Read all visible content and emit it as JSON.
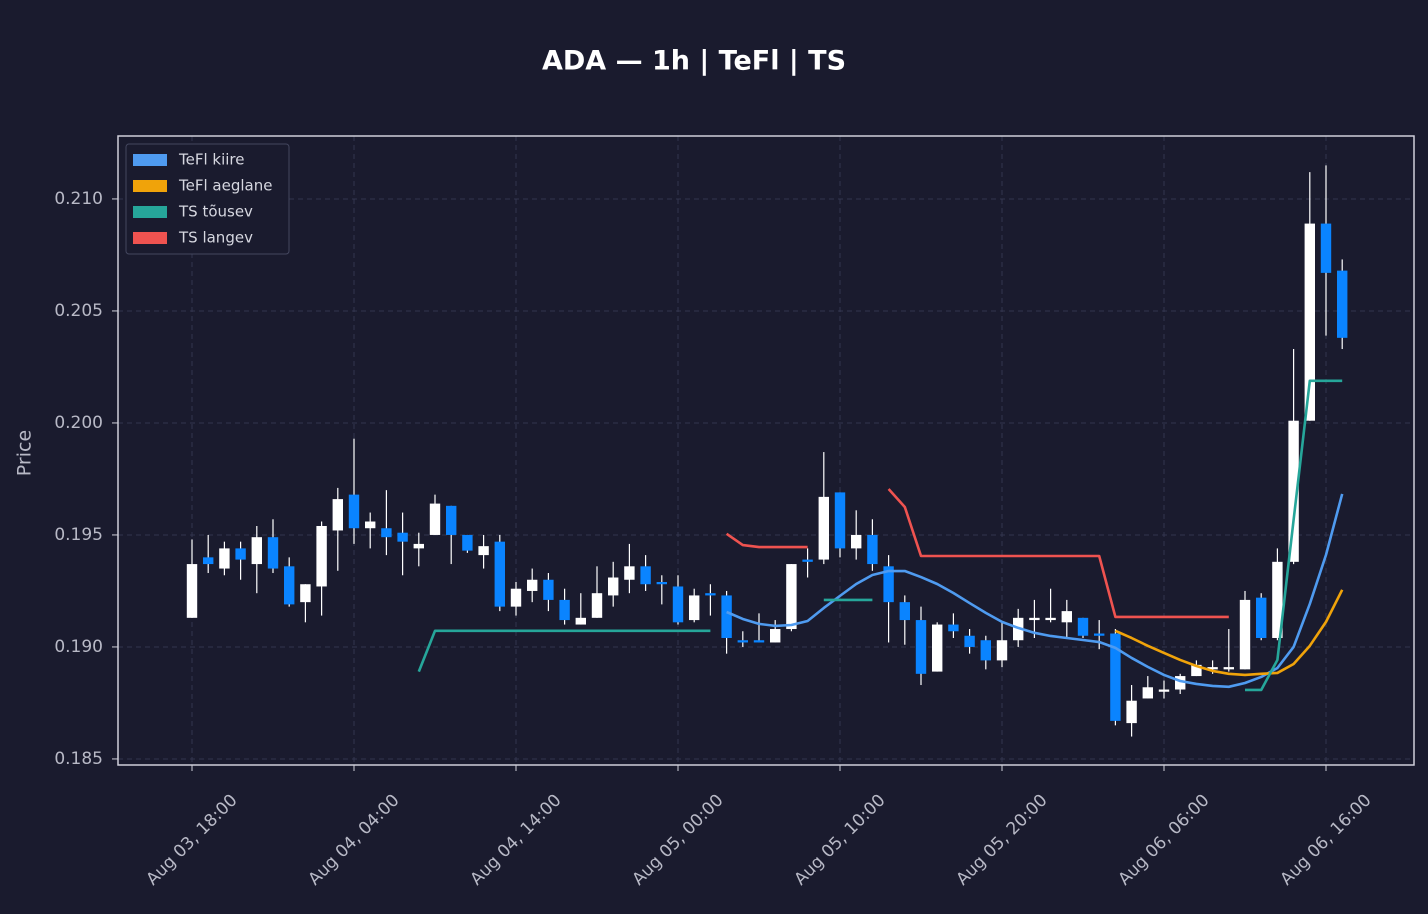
{
  "chart_data": {
    "type": "candlestick",
    "title": "ADA — 1h  |  TeFl  |  TS",
    "ylabel": "Price",
    "x": [
      "Aug 03, 18:00",
      "Aug 03, 19:00",
      "Aug 03, 20:00",
      "Aug 03, 21:00",
      "Aug 03, 22:00",
      "Aug 03, 23:00",
      "Aug 04, 00:00",
      "Aug 04, 01:00",
      "Aug 04, 02:00",
      "Aug 04, 03:00",
      "Aug 04, 04:00",
      "Aug 04, 05:00",
      "Aug 04, 06:00",
      "Aug 04, 07:00",
      "Aug 04, 08:00",
      "Aug 04, 09:00",
      "Aug 04, 10:00",
      "Aug 04, 11:00",
      "Aug 04, 12:00",
      "Aug 04, 13:00",
      "Aug 04, 14:00",
      "Aug 04, 15:00",
      "Aug 04, 16:00",
      "Aug 04, 17:00",
      "Aug 04, 18:00",
      "Aug 04, 19:00",
      "Aug 04, 20:00",
      "Aug 04, 21:00",
      "Aug 04, 22:00",
      "Aug 04, 23:00",
      "Aug 05, 00:00",
      "Aug 05, 01:00",
      "Aug 05, 02:00",
      "Aug 05, 03:00",
      "Aug 05, 04:00",
      "Aug 05, 05:00",
      "Aug 05, 06:00",
      "Aug 05, 07:00",
      "Aug 05, 08:00",
      "Aug 05, 09:00",
      "Aug 05, 10:00",
      "Aug 05, 11:00",
      "Aug 05, 12:00",
      "Aug 05, 13:00",
      "Aug 05, 14:00",
      "Aug 05, 15:00",
      "Aug 05, 16:00",
      "Aug 05, 17:00",
      "Aug 05, 18:00",
      "Aug 05, 19:00",
      "Aug 05, 20:00",
      "Aug 05, 21:00",
      "Aug 05, 22:00",
      "Aug 05, 23:00",
      "Aug 06, 00:00",
      "Aug 06, 01:00",
      "Aug 06, 02:00",
      "Aug 06, 03:00",
      "Aug 06, 04:00",
      "Aug 06, 05:00",
      "Aug 06, 06:00",
      "Aug 06, 07:00",
      "Aug 06, 08:00",
      "Aug 06, 09:00",
      "Aug 06, 10:00",
      "Aug 06, 11:00",
      "Aug 06, 12:00",
      "Aug 06, 13:00",
      "Aug 06, 14:00",
      "Aug 06, 15:00",
      "Aug 06, 16:00",
      "Aug 06, 17:00"
    ],
    "open": [
      0.1913,
      0.194,
      0.1935,
      0.1944,
      0.1937,
      0.1949,
      0.1936,
      0.192,
      0.1927,
      0.1952,
      0.1968,
      0.1953,
      0.1953,
      0.1951,
      0.1944,
      0.195,
      0.1963,
      0.195,
      0.1941,
      0.1947,
      0.1918,
      0.1925,
      0.193,
      0.1921,
      0.191,
      0.1913,
      0.1923,
      0.193,
      0.1936,
      0.1929,
      0.1927,
      0.1912,
      0.1924,
      0.1923,
      0.1903,
      0.1903,
      0.1902,
      0.1908,
      0.1939,
      0.1939,
      0.1969,
      0.1944,
      0.195,
      0.1936,
      0.192,
      0.1912,
      0.1889,
      0.191,
      0.1905,
      0.1903,
      0.1894,
      0.1903,
      0.1912,
      0.1912,
      0.1911,
      0.1913,
      0.1906,
      0.1906,
      0.1866,
      0.1877,
      0.188,
      0.1881,
      0.1887,
      0.189,
      0.189,
      0.189,
      0.1922,
      0.1904,
      0.1938,
      0.2001,
      0.2089,
      0.2068
    ],
    "high": [
      0.1948,
      0.195,
      0.1947,
      0.1947,
      0.1954,
      0.1957,
      0.194,
      0.1928,
      0.1956,
      0.1971,
      0.1993,
      0.196,
      0.197,
      0.196,
      0.1951,
      0.1968,
      0.1963,
      0.195,
      0.195,
      0.195,
      0.1929,
      0.1935,
      0.1933,
      0.1926,
      0.1924,
      0.1936,
      0.1938,
      0.1946,
      0.1941,
      0.1932,
      0.1932,
      0.1926,
      0.1928,
      0.1925,
      0.1907,
      0.1915,
      0.1912,
      0.1937,
      0.1944,
      0.1987,
      0.1969,
      0.1961,
      0.1957,
      0.1941,
      0.1923,
      0.1918,
      0.1911,
      0.1915,
      0.1908,
      0.1905,
      0.1911,
      0.1917,
      0.1921,
      0.1926,
      0.1921,
      0.1913,
      0.1912,
      0.1908,
      0.1883,
      0.1887,
      0.1885,
      0.1888,
      0.1894,
      0.1894,
      0.1908,
      0.1925,
      0.1924,
      0.1944,
      0.2033,
      0.2112,
      0.2115,
      0.2073
    ],
    "low": [
      0.1913,
      0.1933,
      0.1932,
      0.193,
      0.1924,
      0.1933,
      0.1918,
      0.1911,
      0.1914,
      0.1934,
      0.1946,
      0.1944,
      0.1941,
      0.1932,
      0.1936,
      0.195,
      0.1937,
      0.1942,
      0.1935,
      0.1916,
      0.1914,
      0.192,
      0.1916,
      0.191,
      0.191,
      0.1913,
      0.1918,
      0.1924,
      0.1925,
      0.1919,
      0.191,
      0.1911,
      0.1914,
      0.1897,
      0.19,
      0.1902,
      0.1902,
      0.1907,
      0.1931,
      0.1937,
      0.194,
      0.1939,
      0.1934,
      0.1902,
      0.1901,
      0.1883,
      0.1889,
      0.1904,
      0.1897,
      0.189,
      0.1891,
      0.19,
      0.1904,
      0.1911,
      0.1904,
      0.1904,
      0.1899,
      0.1865,
      0.186,
      0.1877,
      0.1877,
      0.1879,
      0.1887,
      0.1888,
      0.1889,
      0.189,
      0.1903,
      0.1903,
      0.1937,
      0.2001,
      0.2039,
      0.2033
    ],
    "close": [
      0.1937,
      0.1937,
      0.1944,
      0.1939,
      0.1949,
      0.1935,
      0.1919,
      0.1928,
      0.1954,
      0.1966,
      0.1953,
      0.1956,
      0.1949,
      0.1947,
      0.1946,
      0.1964,
      0.195,
      0.1943,
      0.1945,
      0.1918,
      0.1926,
      0.193,
      0.1921,
      0.1912,
      0.1913,
      0.1924,
      0.1931,
      0.1936,
      0.1928,
      0.1928,
      0.1911,
      0.1923,
      0.1923,
      0.1904,
      0.1902,
      0.1902,
      0.1908,
      0.1937,
      0.1938,
      0.1967,
      0.1944,
      0.195,
      0.1937,
      0.192,
      0.1912,
      0.1888,
      0.191,
      0.1907,
      0.19,
      0.1894,
      0.1903,
      0.1913,
      0.1913,
      0.1913,
      0.1916,
      0.1905,
      0.1905,
      0.1867,
      0.1876,
      0.1882,
      0.1881,
      0.1887,
      0.1892,
      0.1891,
      0.1891,
      0.1921,
      0.1904,
      0.1938,
      0.2001,
      0.2089,
      0.2067,
      0.2038
    ],
    "up_color": "#ffffff",
    "down_color": "#0a84ff",
    "wick_color": "#ffffff",
    "series": [
      {
        "name": "TeFl kiire",
        "color": "#4f9bf0",
        "values": [
          null,
          null,
          null,
          null,
          null,
          null,
          null,
          null,
          null,
          null,
          null,
          null,
          null,
          null,
          null,
          null,
          null,
          null,
          null,
          null,
          null,
          null,
          null,
          null,
          null,
          null,
          null,
          null,
          null,
          null,
          null,
          null,
          null,
          0.19156,
          0.19125,
          0.19103,
          0.19094,
          0.19098,
          0.19116,
          0.19174,
          0.19228,
          0.19281,
          0.19321,
          0.19339,
          0.19339,
          0.19312,
          0.19281,
          0.19241,
          0.19196,
          0.19152,
          0.19112,
          0.19085,
          0.19063,
          0.19049,
          0.1904,
          0.19031,
          0.19022,
          0.18996,
          0.18951,
          0.18911,
          0.18875,
          0.18848,
          0.18835,
          0.18826,
          0.18822,
          0.18839,
          0.18866,
          0.18906,
          0.19,
          0.19192,
          0.19411,
          0.19683
        ]
      },
      {
        "name": "TeFl aeglane",
        "color": "#f0a30a",
        "values": [
          null,
          null,
          null,
          null,
          null,
          null,
          null,
          null,
          null,
          null,
          null,
          null,
          null,
          null,
          null,
          null,
          null,
          null,
          null,
          null,
          null,
          null,
          null,
          null,
          null,
          null,
          null,
          null,
          null,
          null,
          null,
          null,
          null,
          null,
          null,
          null,
          null,
          null,
          null,
          null,
          null,
          null,
          null,
          null,
          null,
          null,
          null,
          null,
          null,
          null,
          null,
          null,
          null,
          null,
          null,
          null,
          null,
          0.19072,
          0.1904,
          0.19005,
          0.18973,
          0.18942,
          0.18915,
          0.18893,
          0.1888,
          0.18875,
          0.1888,
          0.18884,
          0.18924,
          0.19005,
          0.19112,
          0.19255
        ]
      },
      {
        "name": "TS tõusev",
        "color": "#26a69a",
        "values": [
          null,
          null,
          null,
          null,
          null,
          null,
          null,
          null,
          null,
          null,
          null,
          null,
          null,
          null,
          0.1889,
          0.19072,
          0.19072,
          0.19072,
          0.19072,
          0.19072,
          0.19072,
          0.19072,
          0.19072,
          0.19072,
          0.19072,
          0.19072,
          0.19072,
          0.19072,
          0.19072,
          0.19072,
          0.19072,
          0.19072,
          0.19072,
          null,
          null,
          null,
          null,
          null,
          null,
          0.1921,
          0.1921,
          0.1921,
          0.1921,
          null,
          null,
          null,
          null,
          null,
          null,
          null,
          null,
          null,
          null,
          null,
          null,
          null,
          null,
          null,
          null,
          null,
          null,
          null,
          null,
          null,
          null,
          0.18808,
          0.18808,
          0.18942,
          0.19567,
          0.20188,
          0.20188,
          0.20188
        ]
      },
      {
        "name": "TS langev",
        "color": "#ef5350",
        "values": [
          null,
          null,
          null,
          null,
          null,
          null,
          null,
          null,
          null,
          null,
          null,
          null,
          null,
          null,
          null,
          null,
          null,
          null,
          null,
          null,
          null,
          null,
          null,
          null,
          null,
          null,
          null,
          null,
          null,
          null,
          null,
          null,
          null,
          0.19505,
          0.19455,
          0.19446,
          0.19446,
          0.19446,
          0.19446,
          null,
          null,
          null,
          null,
          0.19705,
          0.19625,
          0.19406,
          0.19406,
          0.19406,
          0.19406,
          0.19406,
          0.19406,
          0.19406,
          0.19406,
          0.19406,
          0.19406,
          0.19406,
          0.19406,
          0.19134,
          0.19134,
          0.19134,
          0.19134,
          0.19134,
          0.19134,
          0.19134,
          0.19134,
          null,
          null,
          null,
          null,
          null,
          null,
          null
        ]
      }
    ],
    "ylim": [
      0.18473,
      0.21281
    ],
    "yticks": [
      0.185,
      {
        "value": 0.19,
        "label": "0.190"
      },
      0.195,
      {
        "value": 0.2,
        "label": "0.200"
      },
      0.205,
      {
        "value": 0.21,
        "label": "0.210"
      }
    ],
    "xticks": [
      "Aug 03, 18:00",
      "Aug 04, 04:00",
      "Aug 04, 14:00",
      "Aug 05, 00:00",
      "Aug 05, 10:00",
      "Aug 05, 20:00",
      "Aug 06, 06:00",
      "Aug 06, 16:00"
    ],
    "grid": true,
    "legend": "upper left"
  }
}
